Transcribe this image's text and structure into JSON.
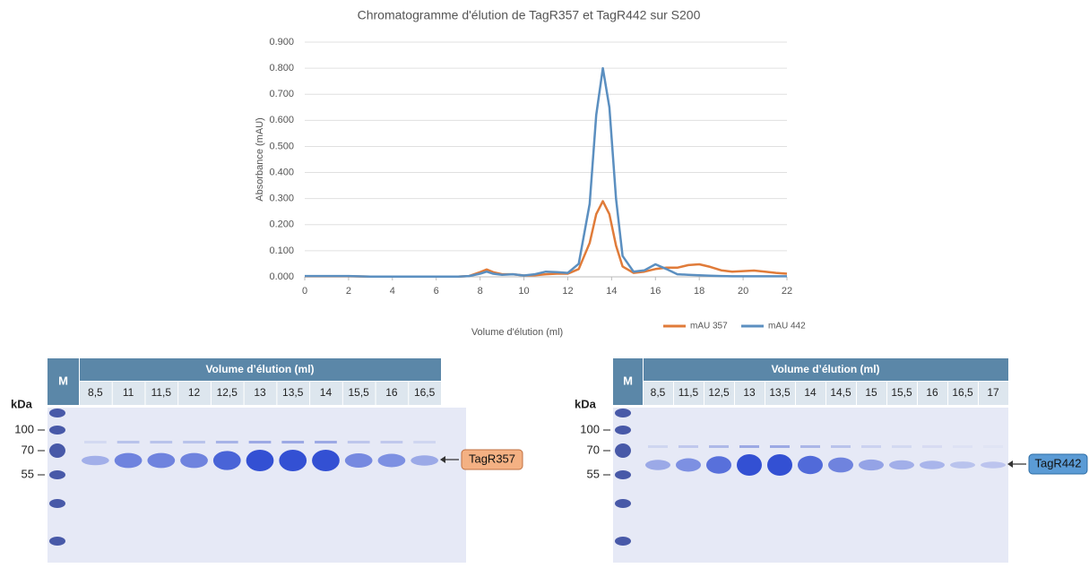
{
  "chart_data": {
    "type": "line",
    "title": "Chromatogramme d'élution de TagR357 et TagR442 sur S200",
    "x_label": "Volume d'élution (ml)",
    "y_label": "Absorbance (mAU)",
    "x": [
      0,
      1,
      2,
      3,
      4,
      5,
      6,
      7,
      7.5,
      8,
      8.3,
      8.6,
      9,
      9.5,
      10,
      10.5,
      11,
      11.5,
      12,
      12.5,
      13,
      13.3,
      13.6,
      13.9,
      14.2,
      14.5,
      15,
      15.5,
      16,
      16.5,
      17,
      17.5,
      18,
      18.5,
      19,
      19.5,
      20,
      20.5,
      21,
      21.5,
      22
    ],
    "series": [
      {
        "name": "mAU 357",
        "color": "#e07b39",
        "values": [
          0.002,
          0.002,
          0.002,
          0.001,
          0.001,
          0.001,
          0.001,
          0.001,
          0.003,
          0.018,
          0.028,
          0.018,
          0.01,
          0.01,
          0.005,
          0.006,
          0.01,
          0.012,
          0.012,
          0.03,
          0.13,
          0.24,
          0.29,
          0.24,
          0.12,
          0.04,
          0.015,
          0.02,
          0.03,
          0.035,
          0.035,
          0.045,
          0.048,
          0.038,
          0.025,
          0.02,
          0.022,
          0.024,
          0.02,
          0.015,
          0.012
        ]
      },
      {
        "name": "mAU 442",
        "color": "#5b8fc0",
        "values": [
          0.003,
          0.003,
          0.003,
          0.001,
          0.001,
          0.001,
          0.001,
          0.001,
          0.003,
          0.012,
          0.02,
          0.012,
          0.008,
          0.01,
          0.005,
          0.01,
          0.02,
          0.018,
          0.015,
          0.05,
          0.28,
          0.62,
          0.8,
          0.65,
          0.3,
          0.08,
          0.02,
          0.025,
          0.048,
          0.03,
          0.01,
          0.008,
          0.006,
          0.004,
          0.003,
          0.002,
          0.002,
          0.002,
          0.002,
          0.002,
          0.002
        ]
      }
    ],
    "xlim": [
      0,
      22
    ],
    "xticks": [
      0,
      2,
      4,
      6,
      8,
      10,
      12,
      14,
      16,
      18,
      20,
      22
    ],
    "ylim": [
      0,
      0.9
    ],
    "yticks": [
      {
        "value": 0,
        "label": "0.000"
      },
      {
        "value": 0.1,
        "label": "0.100"
      },
      {
        "value": 0.2,
        "label": "0.200"
      },
      {
        "value": 0.3,
        "label": "0.300"
      },
      {
        "value": 0.4,
        "label": "0.400"
      },
      {
        "value": 0.5,
        "label": "0.500"
      },
      {
        "value": 0.6,
        "label": "0.600"
      },
      {
        "value": 0.7,
        "label": "0.700"
      },
      {
        "value": 0.8,
        "label": "0.800"
      },
      {
        "value": 0.9,
        "label": "0.900"
      }
    ],
    "grid": true,
    "legend": "bottom-right"
  },
  "gels": [
    {
      "marker": "M",
      "header": "Volume d’élution (ml)",
      "unit": "kDa",
      "sizes": [
        "100",
        "70",
        "55"
      ],
      "lanes": [
        "8,5",
        "11",
        "11,5",
        "12",
        "12,5",
        "13",
        "13,5",
        "14",
        "15,5",
        "16",
        "16,5"
      ],
      "protein": "TagR357"
    },
    {
      "marker": "M",
      "header": "Volume d’élution (ml)",
      "unit": "kDa",
      "sizes": [
        "100",
        "70",
        "55"
      ],
      "lanes": [
        "8,5",
        "11,5",
        "12,5",
        "13",
        "13,5",
        "14",
        "14,5",
        "15",
        "15,5",
        "16",
        "16,5",
        "17"
      ],
      "protein": "TagR442"
    }
  ]
}
